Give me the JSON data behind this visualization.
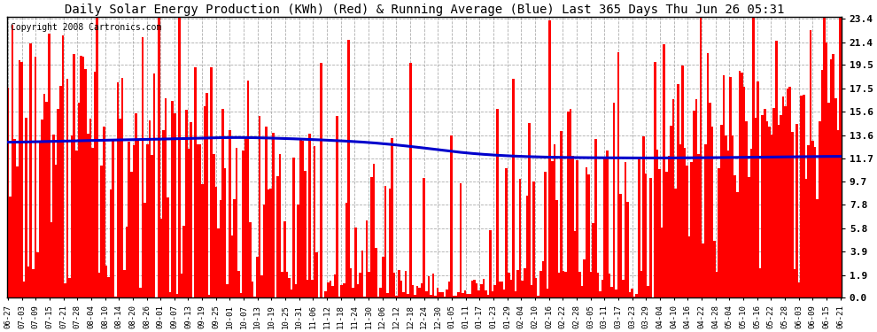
{
  "title": "Daily Solar Energy Production (KWh) (Red) & Running Average (Blue) Last 365 Days Thu Jun 26 05:31",
  "copyright": "Copyright 2008 Cartronics.com",
  "yticks": [
    0.0,
    1.9,
    3.9,
    5.8,
    7.8,
    9.7,
    11.7,
    13.6,
    15.6,
    17.5,
    19.5,
    21.4,
    23.4
  ],
  "ymax": 23.4,
  "ymin": 0.0,
  "bar_color": "#ff0000",
  "avg_color": "#0000cc",
  "bg_color": "#ffffff",
  "plot_bg_color": "#ffffff",
  "grid_color": "#999999",
  "title_fontsize": 10,
  "copyright_fontsize": 7,
  "x_labels": [
    "06-27",
    "07-03",
    "07-09",
    "07-15",
    "07-21",
    "07-28",
    "08-04",
    "08-10",
    "08-14",
    "08-20",
    "08-26",
    "09-01",
    "09-07",
    "09-13",
    "09-19",
    "09-25",
    "10-01",
    "10-07",
    "10-13",
    "10-19",
    "10-25",
    "10-31",
    "11-06",
    "11-12",
    "11-18",
    "11-24",
    "11-30",
    "12-06",
    "12-12",
    "12-18",
    "12-24",
    "12-30",
    "01-05",
    "01-11",
    "01-17",
    "01-23",
    "01-29",
    "02-04",
    "02-10",
    "02-16",
    "02-22",
    "02-28",
    "03-05",
    "03-11",
    "03-17",
    "03-23",
    "03-29",
    "04-04",
    "04-10",
    "04-16",
    "04-22",
    "04-28",
    "05-04",
    "05-10",
    "05-16",
    "05-22",
    "05-28",
    "06-03",
    "06-09",
    "06-15",
    "06-21"
  ],
  "running_avg_points": [
    [
      0,
      13.0
    ],
    [
      30,
      13.15
    ],
    [
      60,
      13.25
    ],
    [
      90,
      13.4
    ],
    [
      100,
      13.45
    ],
    [
      120,
      13.35
    ],
    [
      140,
      13.2
    ],
    [
      160,
      13.0
    ],
    [
      180,
      12.6
    ],
    [
      200,
      12.1
    ],
    [
      220,
      11.85
    ],
    [
      240,
      11.75
    ],
    [
      260,
      11.72
    ],
    [
      280,
      11.7
    ],
    [
      300,
      11.72
    ],
    [
      320,
      11.75
    ],
    [
      340,
      11.8
    ],
    [
      364,
      11.85
    ]
  ]
}
